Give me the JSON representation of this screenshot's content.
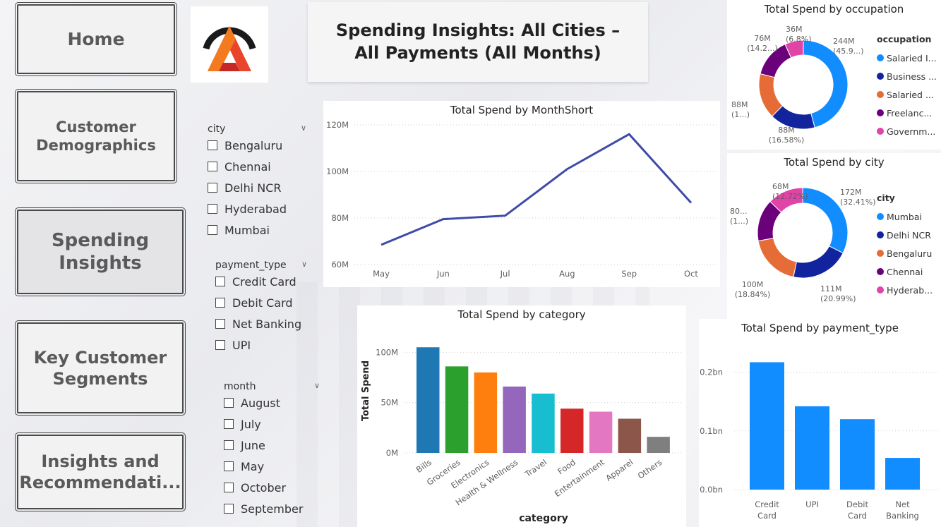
{
  "nav": [
    {
      "label": "Home",
      "active": false
    },
    {
      "label": "Customer Demographics",
      "active": false
    },
    {
      "label": "Spending Insights",
      "active": true
    },
    {
      "label": "Key Customer Segments",
      "active": false
    },
    {
      "label": "Insights and Recommendati...",
      " active": false
    }
  ],
  "title": "Spending Insights: All Cities – All Payments (All Months)",
  "slicers": {
    "city": {
      "label": "city",
      "options": [
        "Bengaluru",
        "Chennai",
        "Delhi NCR",
        "Hyderabad",
        "Mumbai"
      ]
    },
    "payment_type": {
      "label": "payment_type",
      "options": [
        "Credit Card",
        "Debit Card",
        "Net Banking",
        "UPI"
      ]
    },
    "month": {
      "label": "month",
      "options": [
        "August",
        "July",
        "June",
        "May",
        "October",
        "September"
      ]
    }
  },
  "colors": {
    "accent": "#118DFF",
    "line": "#3E4BA8"
  },
  "chart_data": [
    {
      "id": "month_line",
      "type": "line",
      "title": "Total Spend by MonthShort",
      "categories": [
        "May",
        "Jun",
        "Jul",
        "Aug",
        "Sep",
        "Oct"
      ],
      "values": [
        68.5,
        79.5,
        81,
        101,
        116,
        86.5
      ],
      "yticks": [
        "60M",
        "80M",
        "100M",
        "120M"
      ],
      "ylim": [
        60,
        120
      ]
    },
    {
      "id": "category_bar",
      "type": "bar",
      "title": "Total Spend by category",
      "xlabel": "category",
      "ylabel": "Total Spend",
      "categories": [
        "Bills",
        "Groceries",
        "Electronics",
        "Health & Wellness",
        "Travel",
        "Food",
        "Entertainment",
        "Apparel",
        "Others"
      ],
      "values": [
        105,
        86,
        80,
        66,
        59,
        44,
        41,
        34,
        16
      ],
      "colors": [
        "#1F77B4",
        "#2CA02C",
        "#FF7F0E",
        "#9467BD",
        "#17BECF",
        "#D62728",
        "#E377C2",
        "#8C564B",
        "#7F7F7F"
      ],
      "yticks": [
        "0M",
        "50M",
        "100M"
      ],
      "ylim": [
        0,
        115
      ]
    },
    {
      "id": "payment_bar",
      "type": "bar",
      "title": "Total Spend by payment_type",
      "categories": [
        "Credit Card",
        "UPI",
        "Debit Card",
        "Net Banking"
      ],
      "values": [
        0.217,
        0.142,
        0.12,
        0.054
      ],
      "yticks": [
        "0.0bn",
        "0.1bn",
        "0.2bn"
      ],
      "ylim": [
        0,
        0.25
      ]
    },
    {
      "id": "occupation_donut",
      "type": "pie",
      "title": "Total Spend by occupation",
      "legend_title": "occupation",
      "slices": [
        {
          "name": "Salaried I...",
          "value": 244,
          "label": "244M",
          "pct": "(45.9...)",
          "color": "#118DFF"
        },
        {
          "name": "Business ...",
          "value": 88,
          "label": "88M",
          "pct": "(16.58%)",
          "color": "#12239E"
        },
        {
          "name": "Salaried ...",
          "value": 88,
          "label": "88M",
          "pct": "(1...)",
          "color": "#E66C37"
        },
        {
          "name": "Freelanc...",
          "value": 76,
          "label": "76M",
          "pct": "(14.2...)",
          "color": "#6B007B"
        },
        {
          "name": "Governm...",
          "value": 36,
          "label": "36M",
          "pct": "(6.8%)",
          "color": "#E044A7"
        }
      ]
    },
    {
      "id": "city_donut",
      "type": "pie",
      "title": "Total Spend by city",
      "legend_title": "city",
      "slices": [
        {
          "name": "Mumbai",
          "value": 172,
          "label": "172M",
          "pct": "(32.41%)",
          "color": "#118DFF"
        },
        {
          "name": "Delhi NCR",
          "value": 111,
          "label": "111M",
          "pct": "(20.99%)",
          "color": "#12239E"
        },
        {
          "name": "Bengaluru",
          "value": 100,
          "label": "100M",
          "pct": "(18.84%)",
          "color": "#E66C37"
        },
        {
          "name": "Chennai",
          "value": 80,
          "label": "80...",
          "pct": "(1...)",
          "color": "#6B007B"
        },
        {
          "name": "Hyderab...",
          "value": 68,
          "label": "68M",
          "pct": "(12.72%)",
          "color": "#E044A7"
        }
      ]
    }
  ]
}
